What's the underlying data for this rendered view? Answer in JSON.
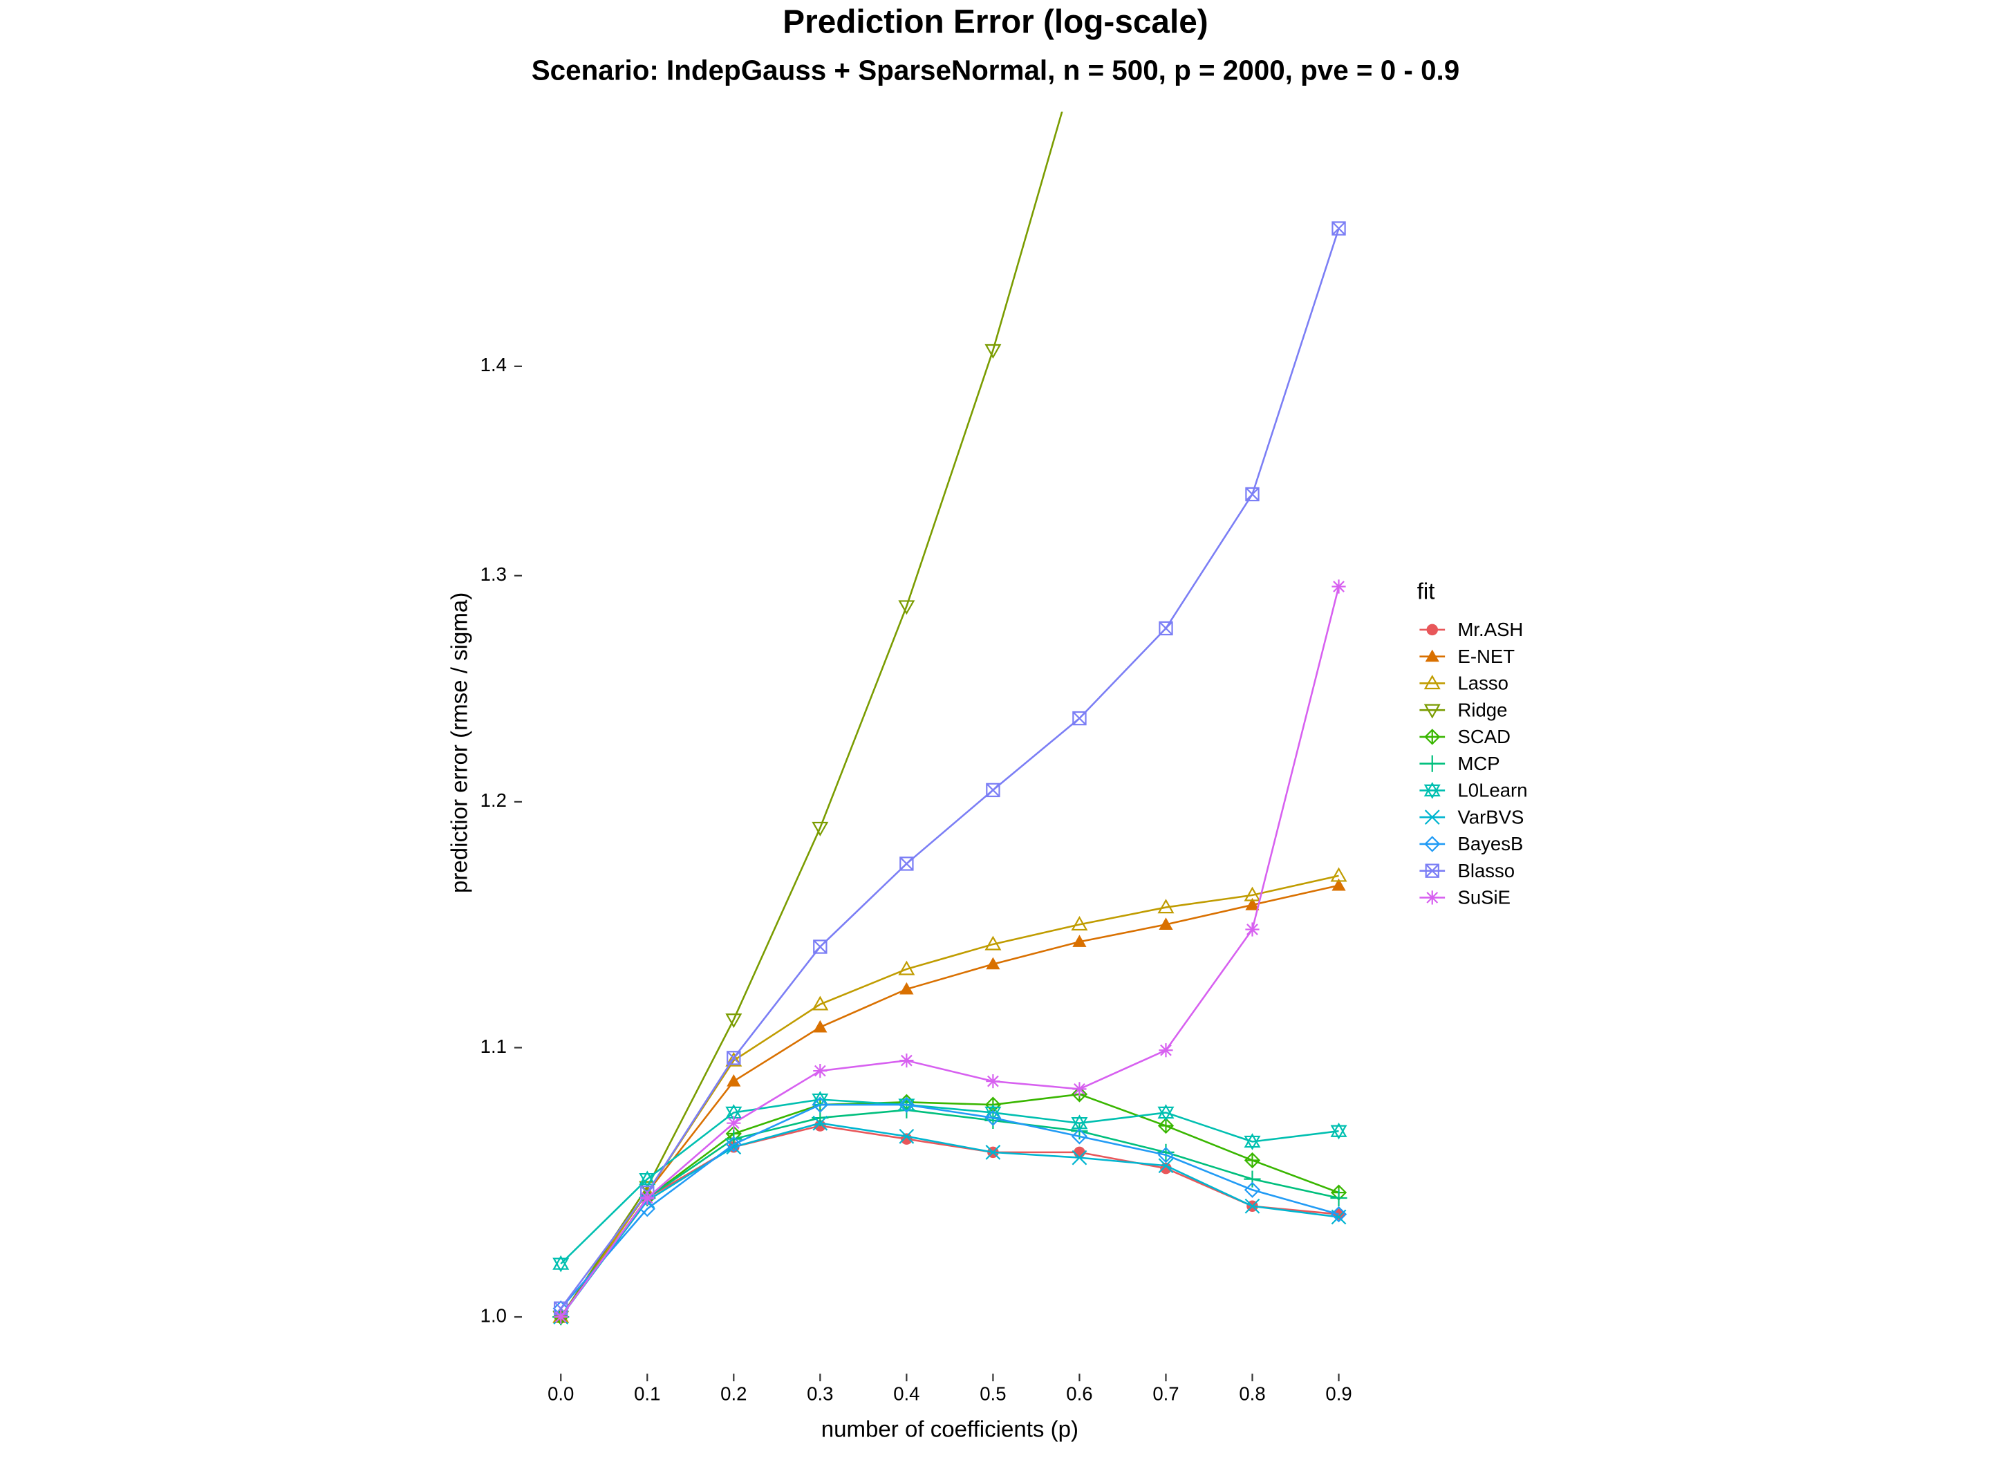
{
  "chart_data": {
    "type": "line",
    "title": "Prediction Error (log-scale)",
    "subtitle": "Scenario: IndepGauss + SparseNormal, n = 500, p = 2000, pve = 0 - 0.9",
    "x_label": "number of coefficients (p)",
    "y_label": "predictior error (rmse / sigma)",
    "legend_title": "fit",
    "log_y": true,
    "grid": false,
    "legend_position": "right",
    "x": [
      0,
      0.1,
      0.2,
      0.3,
      0.4,
      0.5,
      0.6,
      0.7,
      0.8,
      0.9
    ],
    "xlim": [
      -0.045,
      0.945
    ],
    "ylim": [
      0.981,
      1.532
    ],
    "xticks": [
      {
        "value": 0,
        "label": "0.0"
      },
      0.1,
      0.2,
      0.3,
      0.4,
      0.5,
      0.6,
      0.7,
      0.8,
      0.9
    ],
    "yticks": [
      {
        "value": 1,
        "label": "1.0"
      },
      1.1,
      1.2,
      1.3,
      1.4
    ],
    "series": [
      {
        "name": "Mr.ASH",
        "color": "#E8575A",
        "marker": "circle",
        "values": [
          1.0,
          1.043,
          1.062,
          1.07,
          1.065,
          1.06,
          1.06,
          1.054,
          1.04,
          1.037
        ]
      },
      {
        "name": "E-NET",
        "color": "#D97000",
        "marker": "triangle-filled",
        "values": [
          1.0,
          1.045,
          1.087,
          1.108,
          1.123,
          1.133,
          1.142,
          1.149,
          1.157,
          1.165
        ]
      },
      {
        "name": "Lasso",
        "color": "#C09C00",
        "marker": "triangle",
        "values": [
          1.0,
          1.045,
          1.095,
          1.117,
          1.131,
          1.141,
          1.149,
          1.156,
          1.161,
          1.169
        ]
      },
      {
        "name": "Ridge",
        "color": "#7A9C00",
        "marker": "triangle-down",
        "values": [
          1.0,
          1.047,
          1.111,
          1.189,
          1.286,
          1.408,
          1.565,
          null,
          null,
          null
        ]
      },
      {
        "name": "SCAD",
        "color": "#39B600",
        "marker": "diamond-plus",
        "values": [
          1.0,
          1.043,
          1.067,
          1.078,
          1.079,
          1.078,
          1.082,
          1.07,
          1.057,
          1.045
        ]
      },
      {
        "name": "MCP",
        "color": "#00BF7D",
        "marker": "plus",
        "values": [
          1.0,
          1.043,
          1.065,
          1.073,
          1.076,
          1.072,
          1.068,
          1.06,
          1.05,
          1.043
        ]
      },
      {
        "name": "L0Learn",
        "color": "#00BFB0",
        "marker": "star",
        "values": [
          1.019,
          1.05,
          1.075,
          1.08,
          1.078,
          1.075,
          1.071,
          1.075,
          1.064,
          1.068
        ]
      },
      {
        "name": "VarBVS",
        "color": "#00B5D0",
        "marker": "cross",
        "values": [
          1.0,
          1.042,
          1.062,
          1.071,
          1.066,
          1.06,
          1.058,
          1.055,
          1.04,
          1.036
        ]
      },
      {
        "name": "BayesB",
        "color": "#219BF5",
        "marker": "diamond",
        "values": [
          1.003,
          1.039,
          1.063,
          1.078,
          1.078,
          1.073,
          1.066,
          1.059,
          1.046,
          1.037
        ]
      },
      {
        "name": "Blasso",
        "color": "#7B7EF5",
        "marker": "square-cross",
        "values": [
          1.003,
          1.045,
          1.096,
          1.14,
          1.174,
          1.205,
          1.236,
          1.276,
          1.338,
          1.47
        ]
      },
      {
        "name": "SuSiE",
        "color": "#D760F0",
        "marker": "asterisk",
        "values": [
          1.0,
          1.043,
          1.071,
          1.091,
          1.095,
          1.087,
          1.084,
          1.099,
          1.147,
          1.295
        ]
      }
    ]
  }
}
